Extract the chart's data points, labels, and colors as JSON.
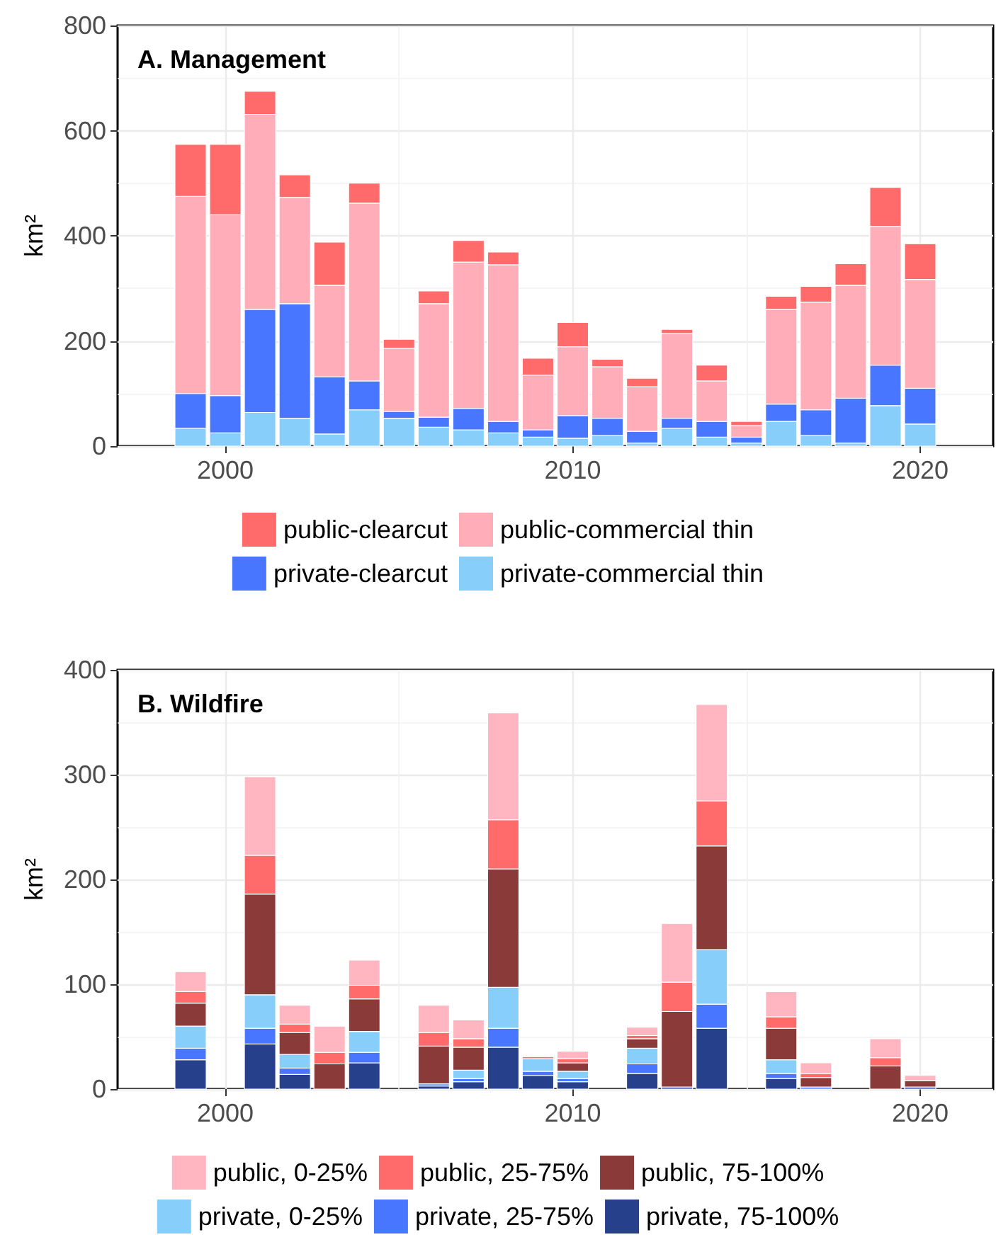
{
  "chart_data": [
    {
      "type": "bar",
      "title": "A. Management",
      "ylabel": "km²",
      "stacked": true,
      "grid": true,
      "legend": "bottom",
      "x": [
        1999,
        2000,
        2001,
        2002,
        2003,
        2004,
        2005,
        2006,
        2007,
        2008,
        2009,
        2010,
        2011,
        2012,
        2013,
        2014,
        2015,
        2016,
        2017,
        2018,
        2019,
        2020
      ],
      "xlim": [
        1996.9,
        2022.1
      ],
      "xticks": [
        2000,
        2010,
        2020
      ],
      "ylim": [
        0,
        800
      ],
      "yticks": [
        0,
        200,
        400,
        600,
        800
      ],
      "series": [
        {
          "name": "private-commercial thin",
          "color": "#87cefa",
          "values": [
            34,
            25,
            64,
            53,
            23,
            69,
            53,
            36,
            31,
            25,
            17,
            15,
            20,
            6,
            34,
            17,
            6,
            47,
            20,
            6,
            77,
            42
          ]
        },
        {
          "name": "private-clearcut",
          "color": "#4876ff",
          "values": [
            66,
            71,
            196,
            218,
            109,
            55,
            13,
            19,
            41,
            22,
            14,
            43,
            33,
            22,
            19,
            30,
            11,
            33,
            49,
            85,
            77,
            68
          ]
        },
        {
          "name": "public-commercial thin",
          "color": "#ffadb9",
          "values": [
            375,
            344,
            371,
            202,
            174,
            338,
            120,
            216,
            278,
            298,
            104,
            131,
            98,
            85,
            161,
            77,
            22,
            180,
            205,
            215,
            264,
            207
          ]
        },
        {
          "name": "public-clearcut",
          "color": "#ff6a6a",
          "values": [
            99,
            134,
            44,
            43,
            82,
            38,
            17,
            24,
            41,
            24,
            32,
            46,
            14,
            16,
            8,
            30,
            8,
            25,
            30,
            41,
            74,
            68
          ]
        }
      ]
    },
    {
      "type": "bar",
      "title": "B. Wildfire",
      "ylabel": "km²",
      "stacked": true,
      "grid": true,
      "legend": "bottom",
      "x": [
        1999,
        2001,
        2002,
        2003,
        2004,
        2006,
        2007,
        2008,
        2009,
        2010,
        2012,
        2013,
        2014,
        2016,
        2017,
        2019,
        2020
      ],
      "xlim": [
        1996.9,
        2022.1
      ],
      "xticks": [
        2000,
        2010,
        2020
      ],
      "ylim": [
        0,
        400
      ],
      "yticks": [
        0,
        100,
        200,
        300,
        400
      ],
      "series": [
        {
          "name": "private, 75-100%",
          "color": "#27408b",
          "values": [
            28,
            43,
            14,
            0,
            25,
            3,
            7,
            40,
            13,
            7,
            15,
            2,
            58,
            10,
            0,
            0,
            2
          ]
        },
        {
          "name": "private, 25-75%",
          "color": "#4876ff",
          "values": [
            11,
            15,
            6,
            0,
            10,
            2,
            3,
            18,
            4,
            3,
            9,
            null,
            23,
            5,
            2,
            0,
            null
          ]
        },
        {
          "name": "private, 0-25%",
          "color": "#87cefa",
          "values": [
            21,
            32,
            13,
            0,
            20,
            0,
            8,
            39,
            12,
            7,
            15,
            0,
            52,
            13,
            0,
            0,
            0
          ]
        },
        {
          "name": "public, 75-100%",
          "color": "#8b3a3a",
          "values": [
            22,
            96,
            21,
            24,
            31,
            36,
            22,
            113,
            null,
            8,
            9,
            72,
            99,
            30,
            9,
            22,
            6
          ]
        },
        {
          "name": "public, 25-75%",
          "color": "#ff6a6a",
          "values": [
            11,
            37,
            8,
            11,
            13,
            13,
            8,
            47,
            2,
            4,
            3,
            28,
            43,
            11,
            4,
            8,
            null
          ]
        },
        {
          "name": "public, 0-25%",
          "color": "#ffb6c1",
          "values": [
            19,
            75,
            18,
            25,
            24,
            26,
            18,
            102,
            1,
            7,
            8,
            56,
            92,
            24,
            10,
            18,
            5
          ]
        }
      ]
    }
  ]
}
